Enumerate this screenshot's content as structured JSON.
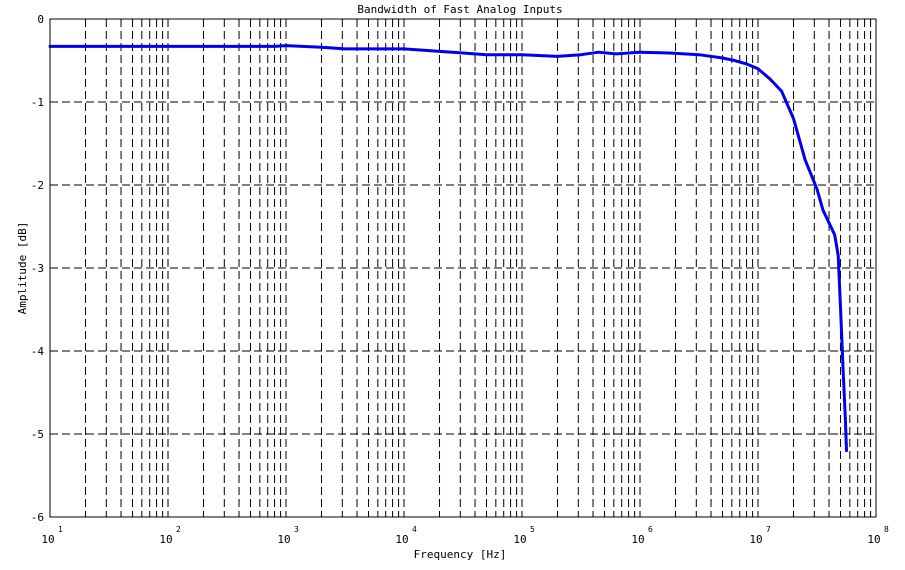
{
  "chart_data": {
    "type": "line",
    "title": "Bandwidth of Fast Analog Inputs",
    "xlabel": "Frequency [Hz]",
    "ylabel": "Amplitude [dB]",
    "x_scale": "log",
    "xlim": [
      10,
      100000000
    ],
    "ylim": [
      -6,
      0
    ],
    "x_ticks": [
      {
        "base": "10",
        "exp": "1",
        "value": 10
      },
      {
        "base": "10",
        "exp": "2",
        "value": 100
      },
      {
        "base": "10",
        "exp": "3",
        "value": 1000
      },
      {
        "base": "10",
        "exp": "4",
        "value": 10000
      },
      {
        "base": "10",
        "exp": "5",
        "value": 100000
      },
      {
        "base": "10",
        "exp": "6",
        "value": 1000000
      },
      {
        "base": "10",
        "exp": "7",
        "value": 10000000
      },
      {
        "base": "10",
        "exp": "8",
        "value": 100000000
      }
    ],
    "y_ticks": [
      "0",
      "-1",
      "-2",
      "-3",
      "-4",
      "-5",
      "-6"
    ],
    "grid": true,
    "grid_style": "dashed",
    "series": [
      {
        "color": "#0000ee",
        "points": [
          [
            10,
            -0.33
          ],
          [
            100,
            -0.33
          ],
          [
            794,
            -0.33
          ],
          [
            1000,
            -0.32
          ],
          [
            2000,
            -0.34
          ],
          [
            3162,
            -0.36
          ],
          [
            10000,
            -0.36
          ],
          [
            31623,
            -0.41
          ],
          [
            50119,
            -0.43
          ],
          [
            100000,
            -0.43
          ],
          [
            199526,
            -0.45
          ],
          [
            316228,
            -0.43
          ],
          [
            446684,
            -0.4
          ],
          [
            630957,
            -0.42
          ],
          [
            1000000,
            -0.4
          ],
          [
            1778279,
            -0.41
          ],
          [
            3162278,
            -0.43
          ],
          [
            5011872,
            -0.47
          ],
          [
            6309573,
            -0.5
          ],
          [
            7943282,
            -0.54
          ],
          [
            10000000,
            -0.6
          ],
          [
            12589254,
            -0.72
          ],
          [
            15848932,
            -0.87
          ],
          [
            20000000,
            -1.2
          ],
          [
            25118864,
            -1.7
          ],
          [
            31622777,
            -2.05
          ],
          [
            35481339,
            -2.3
          ],
          [
            39810717,
            -2.45
          ],
          [
            44668359,
            -2.6
          ],
          [
            47863009,
            -2.85
          ],
          [
            50118723,
            -3.5
          ],
          [
            52480746,
            -4.2
          ],
          [
            54954087,
            -4.8
          ],
          [
            56234133,
            -5.2
          ]
        ]
      }
    ]
  }
}
